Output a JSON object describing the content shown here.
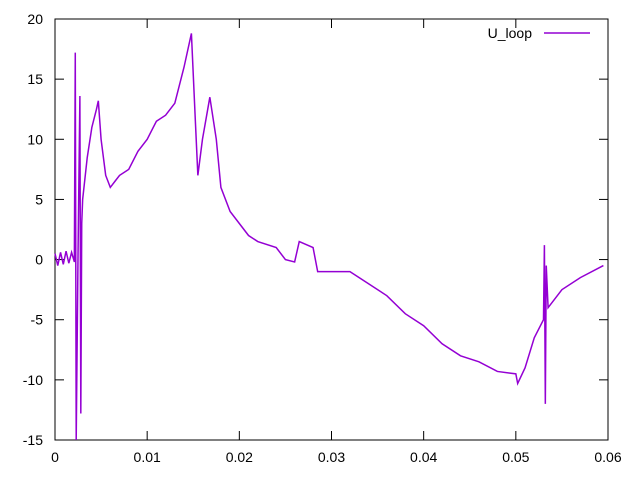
{
  "chart_data": {
    "type": "line",
    "x": [
      0,
      0.0003,
      0.0006,
      0.0009,
      0.0012,
      0.0015,
      0.0018,
      0.0021,
      0.0022,
      0.0023,
      0.0025,
      0.0027,
      0.0028,
      0.0029,
      0.003,
      0.0035,
      0.004,
      0.0045,
      0.0047,
      0.005,
      0.0055,
      0.006,
      0.0065,
      0.007,
      0.008,
      0.009,
      0.01,
      0.011,
      0.012,
      0.013,
      0.014,
      0.0148,
      0.0152,
      0.0155,
      0.016,
      0.0168,
      0.0175,
      0.018,
      0.019,
      0.02,
      0.021,
      0.022,
      0.024,
      0.025,
      0.026,
      0.0265,
      0.028,
      0.0285,
      0.03,
      0.032,
      0.034,
      0.036,
      0.038,
      0.04,
      0.042,
      0.044,
      0.046,
      0.048,
      0.05,
      0.0502,
      0.051,
      0.052,
      0.053,
      0.0531,
      0.0532,
      0.0533,
      0.0535,
      0.055,
      0.057,
      0.0595
    ],
    "series": [
      {
        "name": "U_loop",
        "color": "#9400d3",
        "values": [
          0.5,
          -0.5,
          0.6,
          -0.4,
          0.7,
          -0.3,
          0.6,
          -0.2,
          17.2,
          -15,
          0.5,
          13.6,
          -12.8,
          3,
          5,
          8.5,
          11,
          12.5,
          13.2,
          10,
          7,
          6,
          6.5,
          7,
          7.5,
          9,
          10,
          11.5,
          12,
          13,
          16,
          18.8,
          12,
          7,
          10,
          13.5,
          10,
          6,
          4,
          3,
          2,
          1.5,
          1,
          0,
          -0.2,
          1.5,
          1,
          -1,
          -1,
          -1,
          -2,
          -3,
          -4.5,
          -5.5,
          -7,
          -8,
          -8.5,
          -9.3,
          -9.5,
          -10.3,
          -9,
          -6.5,
          -5,
          1.2,
          -12,
          -0.5,
          -4,
          -2.5,
          -1.5,
          -0.5
        ]
      }
    ],
    "xlim": [
      0,
      0.06
    ],
    "xticks": [
      0,
      0.01,
      0.02,
      0.03,
      0.04,
      0.05,
      0.06
    ],
    "ylim": [
      -15,
      20
    ],
    "yticks": [
      -15,
      -10,
      -5,
      0,
      5,
      10,
      15,
      20
    ],
    "legend": "top-right"
  }
}
